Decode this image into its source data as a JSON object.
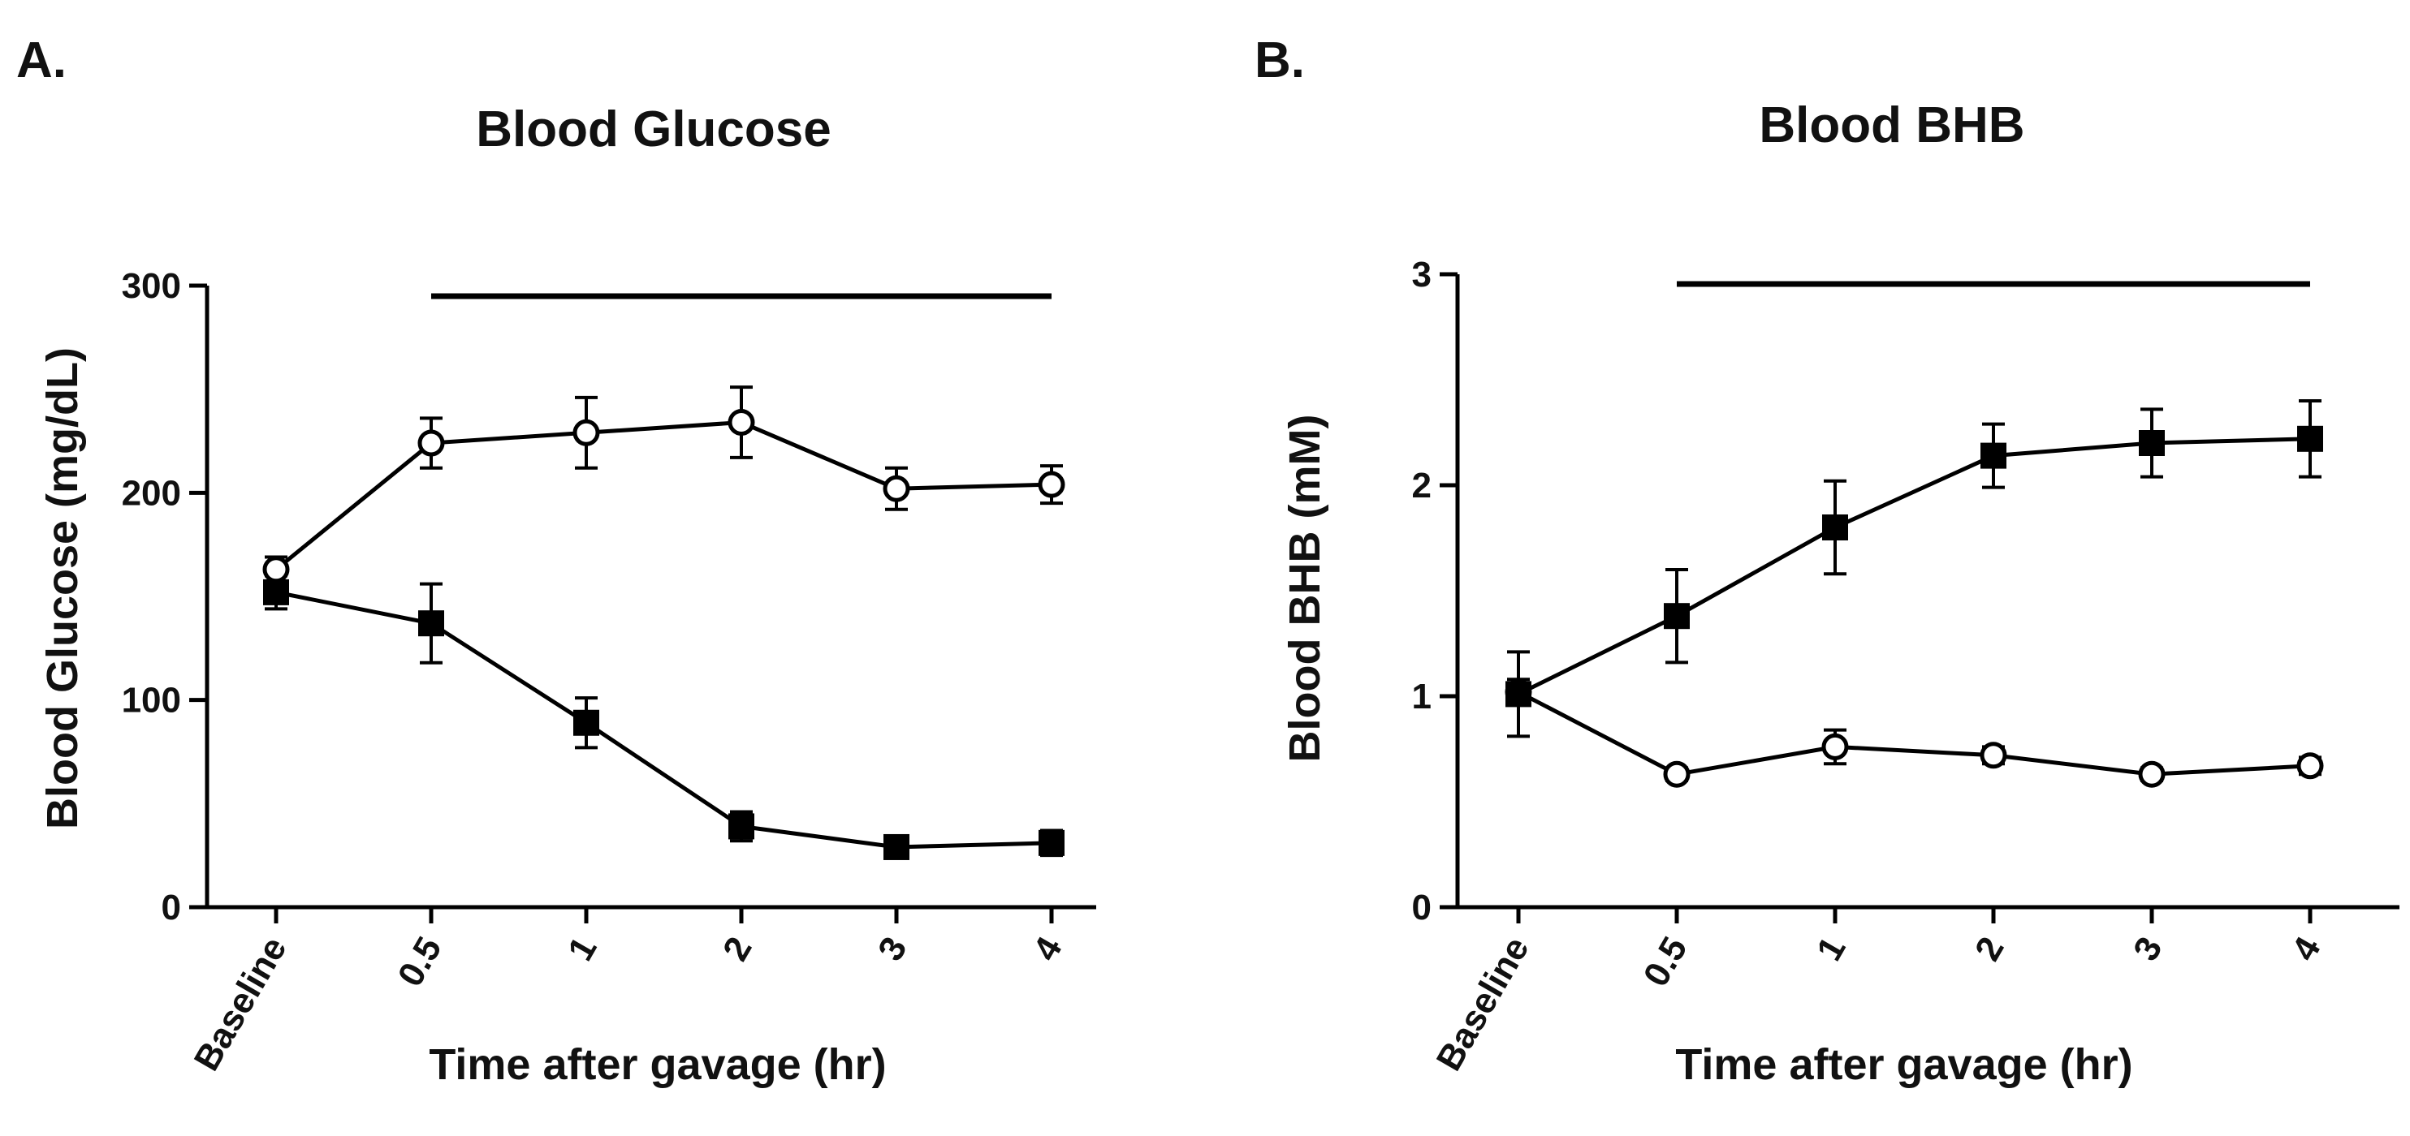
{
  "chart_data": [
    {
      "panel": "A.",
      "type": "line",
      "title": "Blood Glucose",
      "xlabel": "Time after gavage (hr)",
      "ylabel": "Blood Glucose (mg/dL)",
      "categories": [
        "Baseline",
        "0.5",
        "1",
        "2",
        "3",
        "4"
      ],
      "ylim": [
        0,
        300
      ],
      "yticks": [
        "0",
        "100",
        "200",
        "300"
      ],
      "significance_bar": {
        "from": "0.5",
        "to": "4"
      },
      "series": [
        {
          "name": "open-circle",
          "marker": "circle-open",
          "values": [
            163,
            224,
            229,
            234,
            202,
            204
          ],
          "errors": [
            6,
            12,
            17,
            17,
            10,
            9
          ]
        },
        {
          "name": "filled-square",
          "marker": "square-filled",
          "values": [
            152,
            137,
            89,
            39,
            29,
            31
          ],
          "errors": [
            8,
            19,
            12,
            7,
            5,
            6
          ]
        }
      ]
    },
    {
      "panel": "B.",
      "type": "line",
      "title": "Blood BHB",
      "xlabel": "Time after gavage (hr)",
      "ylabel": "Blood BHB (mM)",
      "categories": [
        "Baseline",
        "0.5",
        "1",
        "2",
        "3",
        "4"
      ],
      "ylim": [
        0,
        3
      ],
      "yticks": [
        "0",
        "1",
        "2",
        "3"
      ],
      "significance_bar": {
        "from": "0.5",
        "to": "4"
      },
      "series": [
        {
          "name": "open-circle",
          "marker": "circle-open",
          "values": [
            1.02,
            0.63,
            0.76,
            0.72,
            0.63,
            0.67
          ],
          "errors": [
            0.06,
            0.03,
            0.08,
            0.04,
            0.03,
            0.04
          ]
        },
        {
          "name": "filled-square",
          "marker": "square-filled",
          "values": [
            1.01,
            1.38,
            1.8,
            2.14,
            2.2,
            2.22
          ],
          "errors": [
            0.2,
            0.22,
            0.22,
            0.15,
            0.16,
            0.18
          ]
        }
      ]
    }
  ]
}
